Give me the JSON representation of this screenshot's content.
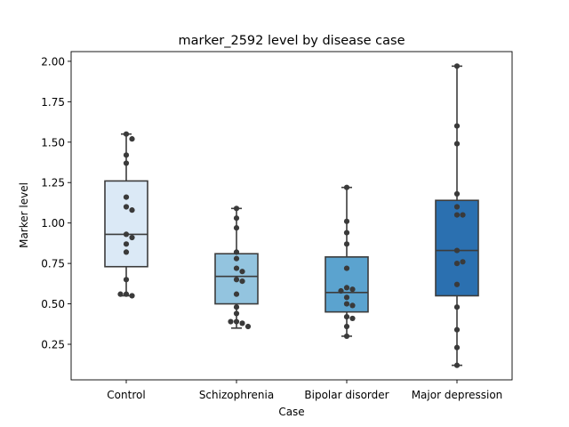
{
  "chart_data": {
    "type": "box",
    "title": "marker_2592 level by disease case",
    "xlabel": "Case",
    "ylabel": "Marker level",
    "ylim": [
      0.03,
      2.06
    ],
    "yticks": [
      "0.25",
      "0.50",
      "0.75",
      "1.00",
      "1.25",
      "1.50",
      "1.75",
      "2.00"
    ],
    "ytick_values": [
      0.25,
      0.5,
      0.75,
      1.0,
      1.25,
      1.5,
      1.75,
      2.0
    ],
    "grid": false,
    "categories": [
      "Control",
      "Schizophrenia",
      "Bipolar disorder",
      "Major depression"
    ],
    "series": [
      {
        "category": "Control",
        "color": "#dbe9f6",
        "box": {
          "whisker_low": 0.55,
          "q1": 0.73,
          "median": 0.93,
          "q3": 1.26,
          "whisker_high": 1.55
        },
        "points": [
          1.55,
          1.52,
          1.42,
          1.37,
          1.16,
          1.1,
          1.08,
          0.93,
          0.91,
          0.87,
          0.82,
          0.65,
          0.56,
          0.55,
          0.56
        ]
      },
      {
        "category": "Schizophrenia",
        "color": "#93c4df",
        "box": {
          "whisker_low": 0.35,
          "q1": 0.5,
          "median": 0.67,
          "q3": 0.81,
          "whisker_high": 1.09
        },
        "points": [
          1.09,
          1.03,
          0.97,
          0.82,
          0.78,
          0.72,
          0.7,
          0.65,
          0.64,
          0.56,
          0.48,
          0.44,
          0.39,
          0.38,
          0.39,
          0.36
        ]
      },
      {
        "category": "Bipolar disorder",
        "color": "#5ba3cf",
        "box": {
          "whisker_low": 0.3,
          "q1": 0.45,
          "median": 0.57,
          "q3": 0.79,
          "whisker_high": 1.22
        },
        "points": [
          1.22,
          1.01,
          0.94,
          0.87,
          0.72,
          0.6,
          0.59,
          0.58,
          0.54,
          0.5,
          0.49,
          0.42,
          0.41,
          0.36,
          0.3
        ]
      },
      {
        "category": "Major depression",
        "color": "#2b70b0",
        "box": {
          "whisker_low": 0.12,
          "q1": 0.55,
          "median": 0.83,
          "q3": 1.14,
          "whisker_high": 1.97
        },
        "points": [
          1.97,
          1.6,
          1.49,
          1.18,
          1.1,
          1.05,
          1.05,
          0.83,
          0.75,
          0.76,
          0.62,
          0.48,
          0.34,
          0.23,
          0.12
        ]
      }
    ]
  }
}
